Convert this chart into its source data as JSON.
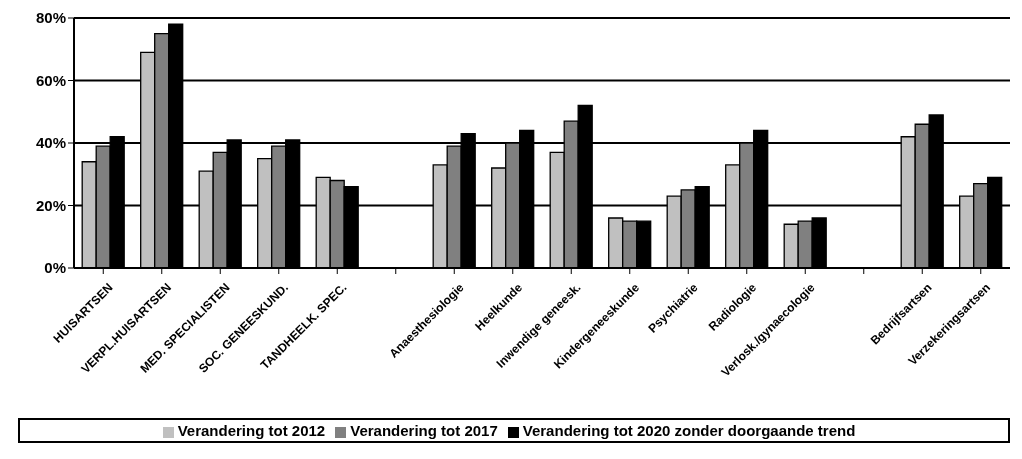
{
  "chart_data": {
    "type": "bar",
    "categories": [
      "HUISARTSEN",
      "VERPL.HUISARTSEN",
      "MED. SPECIALISTEN",
      "SOC. GENEESKUND.",
      "TANDHEELK. SPEC.",
      null,
      "Anaesthesiologie",
      "Heelkunde",
      "Inwendige geneesk.",
      "Kindergeneeskunde",
      "Psychiatrie",
      "Radiologie",
      "Verlosk./gynaecologie",
      null,
      "Bedrijfsartsen",
      "Verzekeringsartsen"
    ],
    "series": [
      {
        "name": "Verandering tot 2012",
        "color": "#c0c0c0",
        "values": [
          34,
          69,
          31,
          35,
          29,
          null,
          33,
          32,
          37,
          16,
          23,
          33,
          14,
          null,
          42,
          23
        ]
      },
      {
        "name": "Verandering tot 2017",
        "color": "#808080",
        "values": [
          39,
          75,
          37,
          39,
          28,
          null,
          39,
          40,
          47,
          15,
          25,
          40,
          15,
          null,
          46,
          27
        ]
      },
      {
        "name": "Verandering tot 2020 zonder doorgaande trend",
        "color": "#000000",
        "values": [
          42,
          78,
          41,
          41,
          26,
          null,
          43,
          44,
          52,
          15,
          26,
          44,
          16,
          null,
          49,
          29
        ]
      }
    ],
    "ylim": [
      0,
      80
    ],
    "yticks": [
      {
        "value": 0,
        "label": "0%"
      },
      {
        "value": 20,
        "label": "20%"
      },
      {
        "value": 40,
        "label": "40%"
      },
      {
        "value": 60,
        "label": "60%"
      },
      {
        "value": 80,
        "label": "80%"
      }
    ],
    "grid": "y",
    "legend": "bottom"
  }
}
